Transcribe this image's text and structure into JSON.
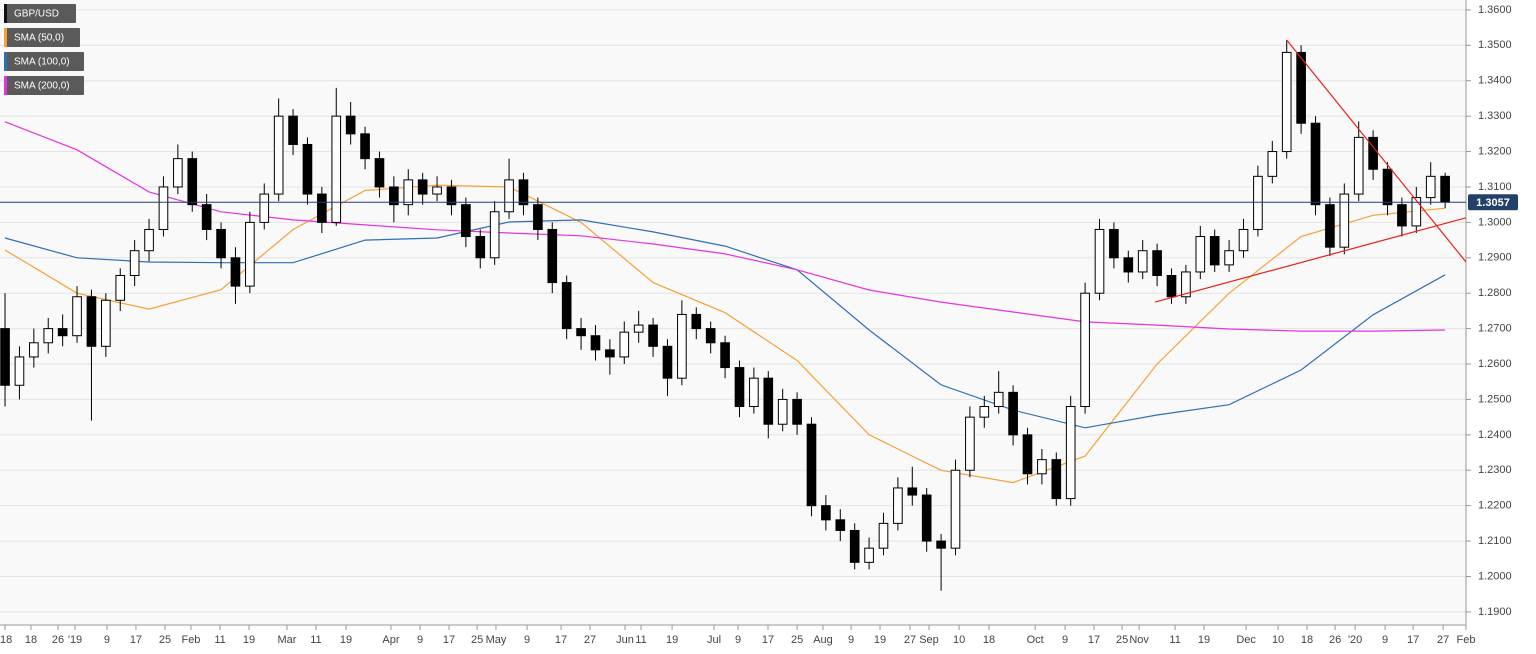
{
  "chart_data": {
    "type": "candlestick",
    "name": "GBP/USD",
    "color": "#000000",
    "up_color": "#ffffff",
    "ohlc": [
      [
        1.27,
        1.28,
        1.248,
        1.254
      ],
      [
        1.254,
        1.265,
        1.25,
        1.262
      ],
      [
        1.262,
        1.27,
        1.259,
        1.266
      ],
      [
        1.266,
        1.273,
        1.263,
        1.27
      ],
      [
        1.27,
        1.274,
        1.265,
        1.268
      ],
      [
        1.268,
        1.282,
        1.266,
        1.279
      ],
      [
        1.279,
        1.281,
        1.244,
        1.265
      ],
      [
        1.265,
        1.28,
        1.262,
        1.278
      ],
      [
        1.278,
        1.287,
        1.275,
        1.285
      ],
      [
        1.285,
        1.295,
        1.282,
        1.292
      ],
      [
        1.292,
        1.301,
        1.289,
        1.298
      ],
      [
        1.298,
        1.313,
        1.296,
        1.31
      ],
      [
        1.31,
        1.322,
        1.308,
        1.318
      ],
      [
        1.318,
        1.32,
        1.303,
        1.305
      ],
      [
        1.305,
        1.308,
        1.295,
        1.298
      ],
      [
        1.298,
        1.3,
        1.287,
        1.29
      ],
      [
        1.29,
        1.293,
        1.277,
        1.282
      ],
      [
        1.282,
        1.303,
        1.28,
        1.3
      ],
      [
        1.3,
        1.311,
        1.298,
        1.308
      ],
      [
        1.308,
        1.335,
        1.306,
        1.33
      ],
      [
        1.33,
        1.332,
        1.319,
        1.322
      ],
      [
        1.322,
        1.324,
        1.305,
        1.308
      ],
      [
        1.308,
        1.31,
        1.297,
        1.3
      ],
      [
        1.3,
        1.338,
        1.299,
        1.33
      ],
      [
        1.33,
        1.334,
        1.322,
        1.325
      ],
      [
        1.325,
        1.327,
        1.315,
        1.318
      ],
      [
        1.318,
        1.32,
        1.307,
        1.31
      ],
      [
        1.31,
        1.313,
        1.3,
        1.305
      ],
      [
        1.305,
        1.315,
        1.302,
        1.312
      ],
      [
        1.312,
        1.314,
        1.305,
        1.308
      ],
      [
        1.308,
        1.313,
        1.306,
        1.31
      ],
      [
        1.31,
        1.312,
        1.302,
        1.305
      ],
      [
        1.305,
        1.307,
        1.293,
        1.296
      ],
      [
        1.296,
        1.298,
        1.287,
        1.29
      ],
      [
        1.29,
        1.306,
        1.288,
        1.303
      ],
      [
        1.303,
        1.318,
        1.301,
        1.312
      ],
      [
        1.312,
        1.314,
        1.302,
        1.305
      ],
      [
        1.305,
        1.307,
        1.295,
        1.298
      ],
      [
        1.298,
        1.3,
        1.28,
        1.283
      ],
      [
        1.283,
        1.285,
        1.267,
        1.27
      ],
      [
        1.27,
        1.273,
        1.264,
        1.268
      ],
      [
        1.268,
        1.271,
        1.261,
        1.264
      ],
      [
        1.264,
        1.267,
        1.257,
        1.262
      ],
      [
        1.262,
        1.272,
        1.26,
        1.269
      ],
      [
        1.269,
        1.275,
        1.266,
        1.271
      ],
      [
        1.271,
        1.273,
        1.262,
        1.265
      ],
      [
        1.265,
        1.267,
        1.251,
        1.256
      ],
      [
        1.256,
        1.278,
        1.254,
        1.274
      ],
      [
        1.274,
        1.276,
        1.267,
        1.27
      ],
      [
        1.27,
        1.272,
        1.263,
        1.266
      ],
      [
        1.266,
        1.268,
        1.256,
        1.259
      ],
      [
        1.259,
        1.261,
        1.245,
        1.248
      ],
      [
        1.248,
        1.259,
        1.246,
        1.256
      ],
      [
        1.256,
        1.258,
        1.239,
        1.243
      ],
      [
        1.243,
        1.253,
        1.241,
        1.25
      ],
      [
        1.25,
        1.252,
        1.24,
        1.243
      ],
      [
        1.243,
        1.245,
        1.217,
        1.22
      ],
      [
        1.22,
        1.223,
        1.213,
        1.216
      ],
      [
        1.216,
        1.219,
        1.21,
        1.213
      ],
      [
        1.213,
        1.215,
        1.202,
        1.204
      ],
      [
        1.204,
        1.211,
        1.202,
        1.208
      ],
      [
        1.208,
        1.218,
        1.206,
        1.215
      ],
      [
        1.215,
        1.228,
        1.213,
        1.225
      ],
      [
        1.225,
        1.231,
        1.22,
        1.223
      ],
      [
        1.223,
        1.225,
        1.207,
        1.21
      ],
      [
        1.21,
        1.212,
        1.196,
        1.208
      ],
      [
        1.208,
        1.233,
        1.206,
        1.23
      ],
      [
        1.23,
        1.248,
        1.228,
        1.245
      ],
      [
        1.245,
        1.251,
        1.242,
        1.248
      ],
      [
        1.248,
        1.258,
        1.246,
        1.252
      ],
      [
        1.252,
        1.254,
        1.237,
        1.24
      ],
      [
        1.24,
        1.242,
        1.226,
        1.229
      ],
      [
        1.229,
        1.236,
        1.226,
        1.233
      ],
      [
        1.233,
        1.235,
        1.22,
        1.222
      ],
      [
        1.222,
        1.251,
        1.22,
        1.248
      ],
      [
        1.248,
        1.283,
        1.246,
        1.28
      ],
      [
        1.28,
        1.301,
        1.278,
        1.298
      ],
      [
        1.298,
        1.3,
        1.287,
        1.29
      ],
      [
        1.29,
        1.292,
        1.283,
        1.286
      ],
      [
        1.286,
        1.295,
        1.284,
        1.292
      ],
      [
        1.292,
        1.294,
        1.282,
        1.285
      ],
      [
        1.285,
        1.287,
        1.277,
        1.279
      ],
      [
        1.279,
        1.288,
        1.277,
        1.286
      ],
      [
        1.286,
        1.299,
        1.284,
        1.296
      ],
      [
        1.296,
        1.298,
        1.286,
        1.288
      ],
      [
        1.288,
        1.295,
        1.286,
        1.292
      ],
      [
        1.292,
        1.301,
        1.29,
        1.298
      ],
      [
        1.298,
        1.316,
        1.296,
        1.313
      ],
      [
        1.313,
        1.323,
        1.311,
        1.32
      ],
      [
        1.32,
        1.3515,
        1.318,
        1.348
      ],
      [
        1.348,
        1.35,
        1.325,
        1.328
      ],
      [
        1.328,
        1.33,
        1.302,
        1.305
      ],
      [
        1.305,
        1.307,
        1.2905,
        1.293
      ],
      [
        1.293,
        1.311,
        1.291,
        1.308
      ],
      [
        1.308,
        1.3285,
        1.306,
        1.324
      ],
      [
        1.324,
        1.326,
        1.312,
        1.315
      ],
      [
        1.315,
        1.317,
        1.302,
        1.305
      ],
      [
        1.305,
        1.307,
        1.296,
        1.299
      ],
      [
        1.299,
        1.31,
        1.297,
        1.307
      ],
      [
        1.307,
        1.317,
        1.305,
        1.313
      ],
      [
        1.313,
        1.314,
        1.304,
        1.3057
      ]
    ],
    "series": [
      {
        "name": "SMA (50,0)",
        "color": "#f7a035",
        "x": [
          0,
          5,
          10,
          15,
          20,
          25,
          30,
          35,
          40,
          45,
          50,
          55,
          60,
          65,
          70,
          75,
          80,
          85,
          90,
          95,
          100
        ],
        "values": [
          1.2922,
          1.28,
          1.2755,
          1.281,
          1.298,
          1.309,
          1.3105,
          1.31,
          1.3,
          1.283,
          1.2745,
          1.261,
          1.24,
          1.23,
          1.2265,
          1.234,
          1.26,
          1.28,
          1.296,
          1.302,
          1.304
        ]
      },
      {
        "name": "SMA (100,0)",
        "color": "#2f6fb5",
        "x": [
          0,
          5,
          10,
          15,
          20,
          25,
          30,
          35,
          40,
          45,
          50,
          55,
          60,
          65,
          70,
          75,
          80,
          85,
          90,
          95,
          100
        ],
        "values": [
          1.2956,
          1.29,
          1.2888,
          1.2886,
          1.2886,
          1.295,
          1.2956,
          1.3001,
          1.3007,
          1.2973,
          1.2933,
          1.2866,
          1.2696,
          1.2541,
          1.247,
          1.242,
          1.2456,
          1.2485,
          1.2583,
          1.2739,
          1.2852
        ]
      },
      {
        "name": "SMA (200,0)",
        "color": "#e632e0",
        "x": [
          0,
          5,
          10,
          15,
          20,
          25,
          30,
          35,
          40,
          45,
          50,
          55,
          60,
          65,
          70,
          75,
          80,
          85,
          90,
          95,
          100
        ],
        "values": [
          1.3284,
          1.3205,
          1.3086,
          1.303,
          1.3007,
          1.2993,
          1.2979,
          1.297,
          1.2962,
          1.2939,
          1.2911,
          1.2866,
          1.2809,
          1.2775,
          1.2747,
          1.2719,
          1.271,
          1.2699,
          1.2693,
          1.2693,
          1.2696
        ]
      }
    ],
    "trendlines": [
      {
        "color": "#e8211b",
        "x": [
          89,
          101.45
        ],
        "values": [
          1.3515,
          1.2888
        ]
      },
      {
        "color": "#e8211b",
        "x": [
          79.86,
          101.45
        ],
        "values": [
          1.2775,
          1.3013
        ]
      }
    ],
    "last_price": {
      "value": 1.3057,
      "label": "1.3057",
      "color": "#23406a"
    },
    "xlim": [
      -0.35,
      101.45
    ],
    "ylim": [
      1.1863,
      1.3628
    ],
    "grid": true,
    "xticks": [
      {
        "value": 0,
        "label": "'18"
      },
      {
        "value": 1.8,
        "label": "18"
      },
      {
        "value": 3.68,
        "label": "26"
      },
      {
        "value": 4.86,
        "label": "'19"
      },
      {
        "value": 7.08,
        "label": "9"
      },
      {
        "value": 9.09,
        "label": "17"
      },
      {
        "value": 11.11,
        "label": "25"
      },
      {
        "value": 12.91,
        "label": "Feb"
      },
      {
        "value": 14.93,
        "label": "11"
      },
      {
        "value": 16.94,
        "label": "19"
      },
      {
        "value": 19.58,
        "label": "Mar"
      },
      {
        "value": 21.59,
        "label": "11"
      },
      {
        "value": 23.68,
        "label": "19"
      },
      {
        "value": 26.8,
        "label": "Apr"
      },
      {
        "value": 28.82,
        "label": "9"
      },
      {
        "value": 30.83,
        "label": "17"
      },
      {
        "value": 32.78,
        "label": "25"
      },
      {
        "value": 34.09,
        "label": "May"
      },
      {
        "value": 36.25,
        "label": "9"
      },
      {
        "value": 38.61,
        "label": "17"
      },
      {
        "value": 40.62,
        "label": "27"
      },
      {
        "value": 43.05,
        "label": "Jun"
      },
      {
        "value": 44.16,
        "label": "11"
      },
      {
        "value": 46.32,
        "label": "19"
      },
      {
        "value": 49.23,
        "label": "Jul"
      },
      {
        "value": 50.9,
        "label": "9"
      },
      {
        "value": 52.98,
        "label": "17"
      },
      {
        "value": 55.0,
        "label": "25"
      },
      {
        "value": 56.8,
        "label": "Aug"
      },
      {
        "value": 58.75,
        "label": "9"
      },
      {
        "value": 60.76,
        "label": "19"
      },
      {
        "value": 62.84,
        "label": "27"
      },
      {
        "value": 64.16,
        "label": "Sep"
      },
      {
        "value": 66.25,
        "label": "10"
      },
      {
        "value": 68.33,
        "label": "18"
      },
      {
        "value": 71.53,
        "label": "Oct"
      },
      {
        "value": 73.61,
        "label": "9"
      },
      {
        "value": 75.62,
        "label": "17"
      },
      {
        "value": 77.57,
        "label": "25"
      },
      {
        "value": 78.75,
        "label": "Nov"
      },
      {
        "value": 81.25,
        "label": "11"
      },
      {
        "value": 83.26,
        "label": "19"
      },
      {
        "value": 86.18,
        "label": "Dec"
      },
      {
        "value": 88.4,
        "label": "10"
      },
      {
        "value": 90.41,
        "label": "18"
      },
      {
        "value": 92.36,
        "label": "26"
      },
      {
        "value": 93.75,
        "label": "'20"
      },
      {
        "value": 95.83,
        "label": "9"
      },
      {
        "value": 97.78,
        "label": "17"
      },
      {
        "value": 99.86,
        "label": "27"
      },
      {
        "value": 101.45,
        "label": "Feb"
      }
    ],
    "yticks": [
      {
        "value": 1.19,
        "label": "1.1900"
      },
      {
        "value": 1.2,
        "label": "1.2000"
      },
      {
        "value": 1.21,
        "label": "1.2100"
      },
      {
        "value": 1.22,
        "label": "1.2200"
      },
      {
        "value": 1.23,
        "label": "1.2300"
      },
      {
        "value": 1.24,
        "label": "1.2400"
      },
      {
        "value": 1.25,
        "label": "1.2500"
      },
      {
        "value": 1.26,
        "label": "1.2600"
      },
      {
        "value": 1.27,
        "label": "1.2700"
      },
      {
        "value": 1.28,
        "label": "1.2800"
      },
      {
        "value": 1.29,
        "label": "1.2900"
      },
      {
        "value": 1.3,
        "label": "1.3000"
      },
      {
        "value": 1.31,
        "label": "1.3100"
      },
      {
        "value": 1.32,
        "label": "1.3200"
      },
      {
        "value": 1.33,
        "label": "1.3300"
      },
      {
        "value": 1.34,
        "label": "1.3400"
      },
      {
        "value": 1.35,
        "label": "1.3500"
      },
      {
        "value": 1.36,
        "label": "1.3600"
      }
    ]
  }
}
